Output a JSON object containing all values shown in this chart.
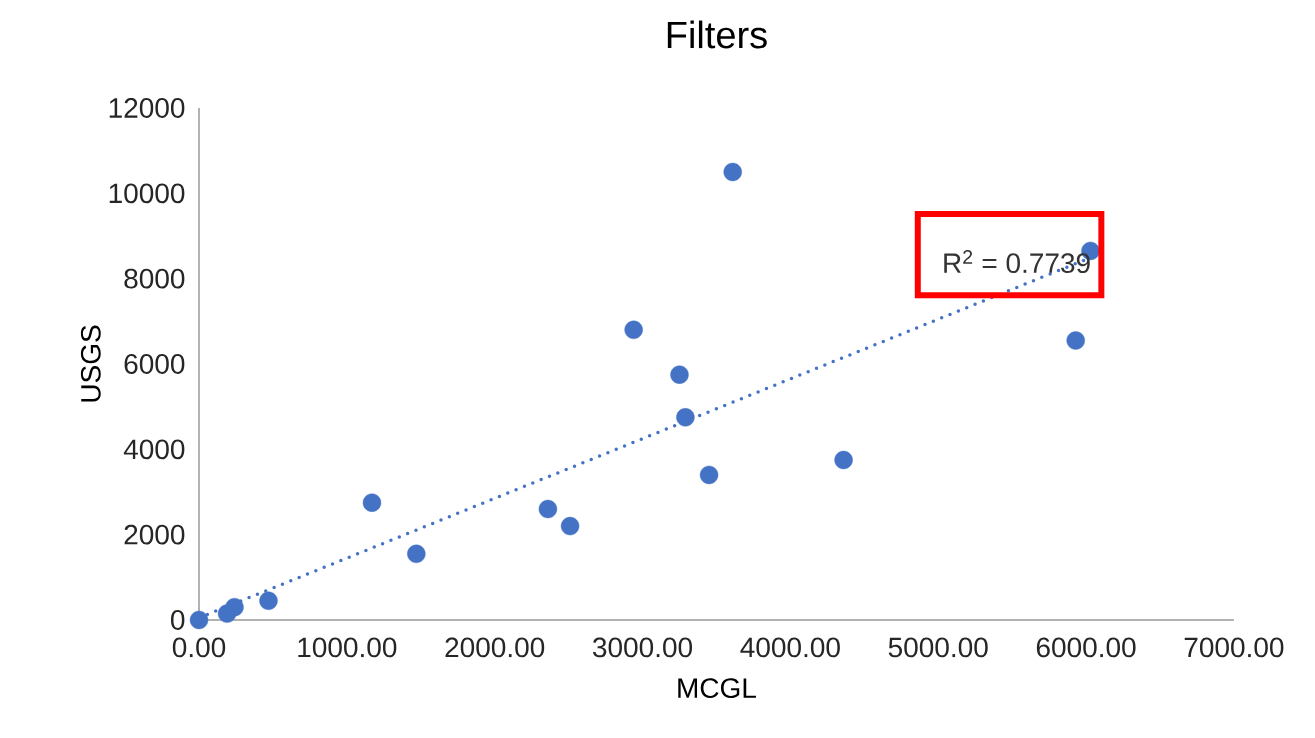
{
  "chart_data": {
    "type": "scatter",
    "title": "Filters",
    "xlabel": "MCGL",
    "ylabel": "USGS",
    "xlim": [
      0,
      7000
    ],
    "ylim": [
      0,
      12000
    ],
    "xticks": [
      {
        "value": 0,
        "label": "0.00"
      },
      {
        "value": 1000,
        "label": "1000.00"
      },
      {
        "value": 2000,
        "label": "2000.00"
      },
      {
        "value": 3000,
        "label": "3000.00"
      },
      {
        "value": 4000,
        "label": "4000.00"
      },
      {
        "value": 5000,
        "label": "5000.00"
      },
      {
        "value": 6000,
        "label": "6000.00"
      },
      {
        "value": 7000,
        "label": "7000.00"
      }
    ],
    "yticks": [
      0,
      2000,
      4000,
      6000,
      8000,
      10000,
      12000
    ],
    "series": [
      {
        "color": "#4472c4",
        "marker": "circle",
        "x": [
          0,
          190,
          240,
          470,
          1170,
          1470,
          2360,
          2510,
          2940,
          3250,
          3290,
          3450,
          3610,
          4360,
          5930,
          6030
        ],
        "values": [
          0,
          150,
          300,
          450,
          2750,
          1550,
          2600,
          2200,
          6800,
          5750,
          4750,
          3400,
          10500,
          3750,
          6550,
          8650
        ]
      },
      {
        "type": "line",
        "color": "#4472c4",
        "line_style": "dotted",
        "marker": "none",
        "x": [
          0,
          6000
        ],
        "values": [
          50,
          8450
        ]
      }
    ],
    "annotations": [
      "R$^{2}$ = 0.7739"
    ]
  }
}
